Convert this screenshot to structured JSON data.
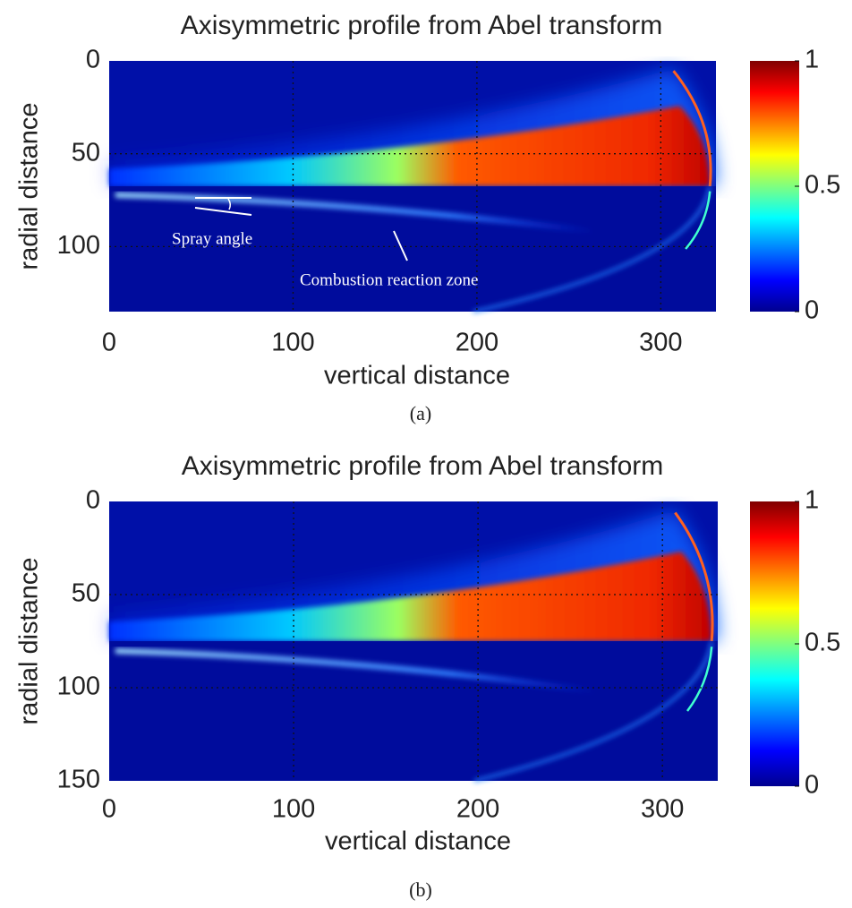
{
  "chart_data": [
    {
      "type": "heatmap",
      "title": "Axisymmetric profile from Abel transform",
      "xlabel": "vertical distance",
      "ylabel": "radial distance",
      "xlim": [
        0,
        330
      ],
      "xticks": [
        0,
        100,
        200,
        300
      ],
      "ylim": [
        0,
        135
      ],
      "yticks": [
        0,
        50,
        100
      ],
      "y_reversed": true,
      "grid": true,
      "colorbar": {
        "lim": [
          0,
          1
        ],
        "ticks": [
          0,
          0.5,
          1
        ]
      },
      "annotations": [
        "Spray angle",
        "Combustion reaction zone"
      ],
      "caption": "(a)"
    },
    {
      "type": "heatmap",
      "title": "Axisymmetric profile from Abel transform",
      "xlabel": "vertical distance",
      "ylabel": "radial distance",
      "xlim": [
        0,
        330
      ],
      "xticks": [
        0,
        100,
        200,
        300
      ],
      "ylim": [
        0,
        150
      ],
      "yticks": [
        0,
        50,
        100,
        150
      ],
      "y_reversed": true,
      "grid": true,
      "colorbar": {
        "lim": [
          0,
          1
        ],
        "ticks": [
          0,
          0.5,
          1
        ]
      },
      "caption": "(b)"
    }
  ]
}
